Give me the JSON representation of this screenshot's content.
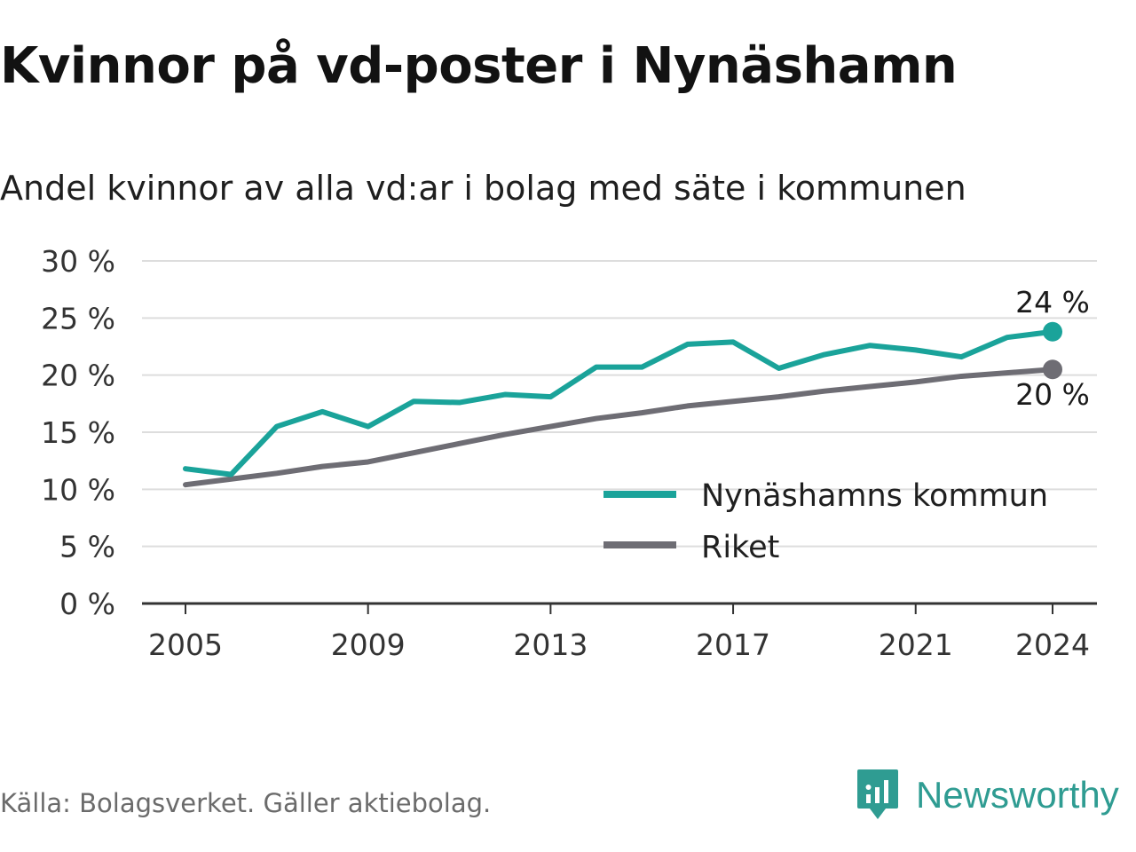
{
  "title": "Kvinnor på vd-poster i Nynäshamn",
  "subtitle": "Andel kvinnor av alla vd:ar i bolag med säte i kommunen",
  "source": "Källa: Bolagsverket. Gäller aktiebolag.",
  "brand": {
    "name": "Newsworthy",
    "icon": "newsworthy-logo-icon",
    "color": "#2f9c92"
  },
  "chart_data": {
    "type": "line",
    "ylim": [
      0,
      30
    ],
    "xlim": [
      2005,
      2024
    ],
    "y_ticks": [
      0,
      5,
      10,
      15,
      20,
      25,
      30
    ],
    "y_tick_labels": [
      "0 %",
      "5 %",
      "10 %",
      "15 %",
      "20 %",
      "25 %",
      "30 %"
    ],
    "x_ticks": [
      2005,
      2009,
      2013,
      2017,
      2021,
      2024
    ],
    "x_tick_labels": [
      "2005",
      "2009",
      "2013",
      "2017",
      "2021",
      "2024"
    ],
    "grid": true,
    "legend_position": "bottom-right",
    "x": [
      2005,
      2006,
      2007,
      2008,
      2009,
      2010,
      2011,
      2012,
      2013,
      2014,
      2015,
      2016,
      2017,
      2018,
      2019,
      2020,
      2021,
      2022,
      2023,
      2024
    ],
    "series": [
      {
        "name": "Nynäshamns kommun",
        "color": "#1aa39a",
        "values": [
          11.8,
          11.3,
          15.5,
          16.8,
          15.5,
          17.7,
          17.6,
          18.3,
          18.1,
          20.7,
          20.7,
          22.7,
          22.9,
          20.6,
          21.8,
          22.6,
          22.2,
          21.6,
          23.3,
          23.8
        ],
        "end_label": "24 %"
      },
      {
        "name": "Riket",
        "color": "#6e6d74",
        "values": [
          10.4,
          10.9,
          11.4,
          12.0,
          12.4,
          13.2,
          14.0,
          14.8,
          15.5,
          16.2,
          16.7,
          17.3,
          17.7,
          18.1,
          18.6,
          19.0,
          19.4,
          19.9,
          20.2,
          20.5
        ],
        "end_label": "20 %"
      }
    ]
  }
}
